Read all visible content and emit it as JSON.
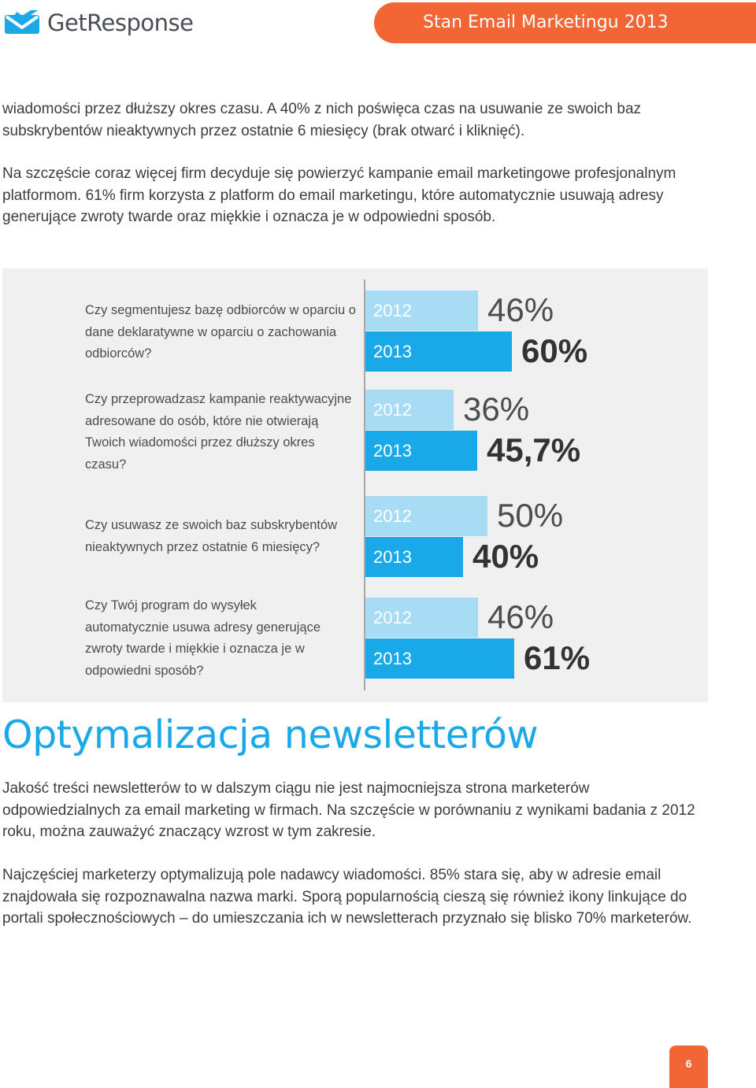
{
  "header": {
    "logo_text": "GetResponse",
    "banner_title": "Stan Email Marketingu 2013",
    "accent_color": "#f26535"
  },
  "intro": {
    "paragraph_1": "wiadomości przez dłuższy okres czasu. A 40% z nich poświęca czas na usuwanie ze swoich baz subskrybentów nieaktywnych przez ostatnie 6 miesięcy (brak otwarć i kliknięć).",
    "paragraph_2": "Na szczęście coraz więcej firm decyduje się powierzyć kampanie email marketingowe profesjonalnym platformom. 61% firm korzysta z platform do email marketingu, które automatycznie usuwają adresy generujące zwroty twarde oraz  miękkie i oznacza je w odpowiedni sposób."
  },
  "chart_data": {
    "type": "bar",
    "orientation": "horizontal",
    "series_colors": {
      "2012": "#a8dcf4",
      "2013": "#1aa9e8"
    },
    "value_scale_max": 100,
    "questions": [
      {
        "text": "Czy segmentujesz bazę odbiorców w oparciu o dane deklaratywne w oparciu o zachowania odbiorców?",
        "bars": [
          {
            "year": "2012",
            "value": 46,
            "label": "46%"
          },
          {
            "year": "2013",
            "value": 60,
            "label": "60%"
          }
        ]
      },
      {
        "text": "Czy przeprowadzasz kampanie reaktywacyjne adresowane do osób, które nie otwierają Twoich wiadomości przez dłuższy okres czasu?",
        "bars": [
          {
            "year": "2012",
            "value": 36,
            "label": "36%"
          },
          {
            "year": "2013",
            "value": 45.7,
            "label": "45,7%"
          }
        ]
      },
      {
        "text": "Czy usuwasz ze swoich baz subskrybentów nieaktywnych przez ostatnie 6 miesięcy?",
        "bars": [
          {
            "year": "2012",
            "value": 50,
            "label": "50%"
          },
          {
            "year": "2013",
            "value": 40,
            "label": "40%"
          }
        ]
      },
      {
        "text": "Czy Twój program do wysyłek automatycznie usuwa adresy generujące zwroty twarde i miękkie i oznacza je w odpowiedni sposób?",
        "bars": [
          {
            "year": "2012",
            "value": 46,
            "label": "46%"
          },
          {
            "year": "2013",
            "value": 61,
            "label": "61%"
          }
        ]
      }
    ]
  },
  "section": {
    "title": "Optymalizacja newsletterów",
    "title_color": "#1aa9e8",
    "paragraph_1": "Jakość treści newsletterów to w dalszym ciągu nie jest najmocniejsza strona marketerów odpowiedzialnych za email marketing w firmach. Na szczęście w porównaniu z wynikami badania z 2012 roku, można zauważyć znaczący wzrost w tym zakresie.",
    "paragraph_2": "Najczęściej marketerzy optymalizują pole nadawcy wiadomości. 85% stara się, aby w adresie email znajdowała się rozpoznawalna nazwa marki. Sporą popularnością cieszą się również ikony linkujące do portali społecznościowych – do umieszczania ich w newsletterach przyznało się blisko 70% marketerów."
  },
  "footer": {
    "page_number": "6"
  }
}
